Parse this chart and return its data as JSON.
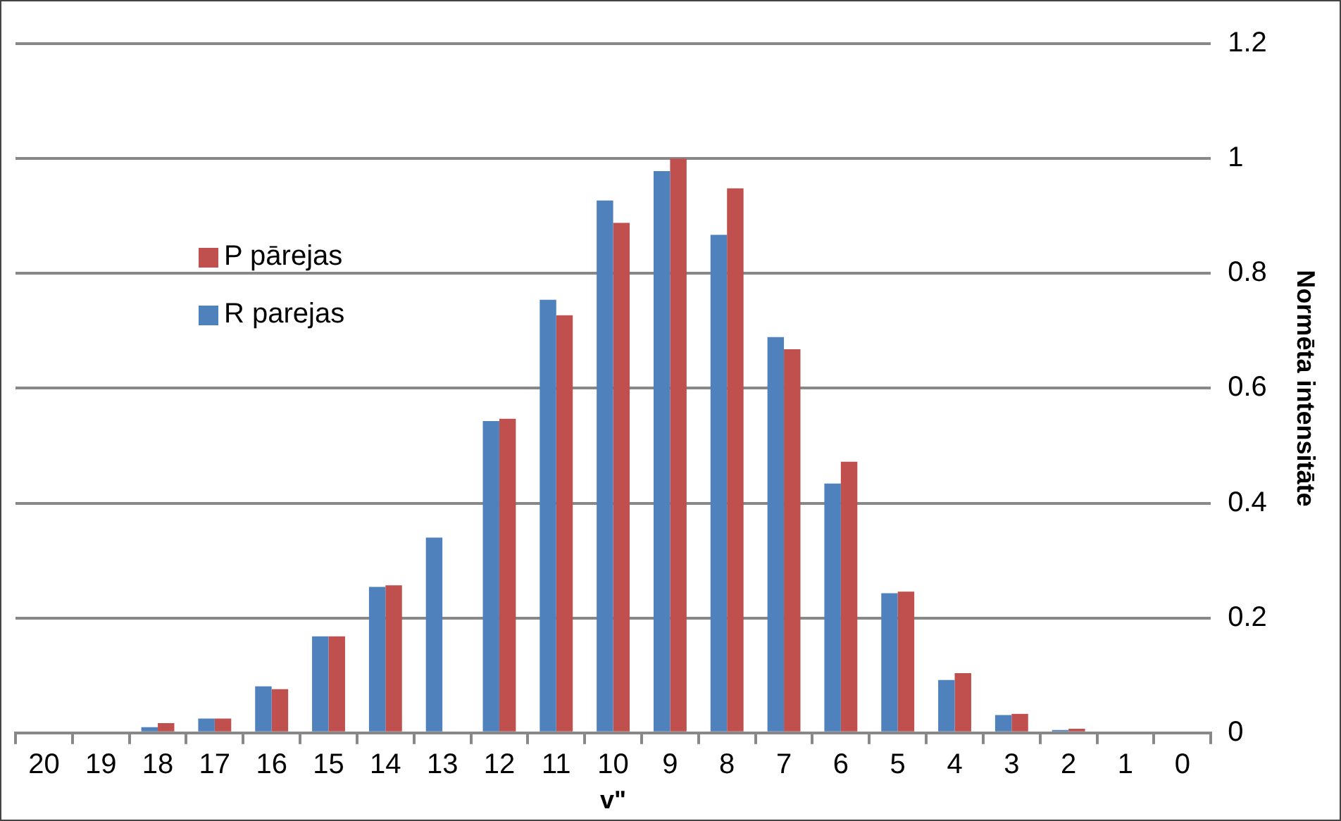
{
  "chart_data": {
    "type": "bar",
    "xlabel": "v\"",
    "ylabel": "Normēta intensitāte",
    "categories": [
      "20",
      "19",
      "18",
      "17",
      "16",
      "15",
      "14",
      "13",
      "12",
      "11",
      "10",
      "9",
      "8",
      "7",
      "6",
      "5",
      "4",
      "3",
      "2",
      "1",
      "0"
    ],
    "series": [
      {
        "name": "R parejas",
        "color": "#4f81bd",
        "values": [
          null,
          null,
          0.01,
          0.025,
          0.081,
          0.168,
          0.254,
          0.34,
          0.543,
          0.754,
          0.927,
          0.978,
          0.867,
          0.689,
          0.434,
          0.243,
          0.092,
          0.031,
          0.005,
          null,
          null
        ]
      },
      {
        "name": "P pārejas",
        "color": "#c0504d",
        "values": [
          null,
          null,
          0.017,
          0.025,
          0.076,
          0.168,
          0.257,
          null,
          0.547,
          0.727,
          0.888,
          1.0,
          0.948,
          0.668,
          0.472,
          0.246,
          0.104,
          0.033,
          0.007,
          null,
          null
        ]
      }
    ],
    "ylim": [
      0,
      1.2
    ],
    "yticks": [
      0,
      0.2,
      0.4,
      0.6,
      0.8,
      1,
      1.2
    ],
    "grid": "y",
    "legend": "top left"
  }
}
